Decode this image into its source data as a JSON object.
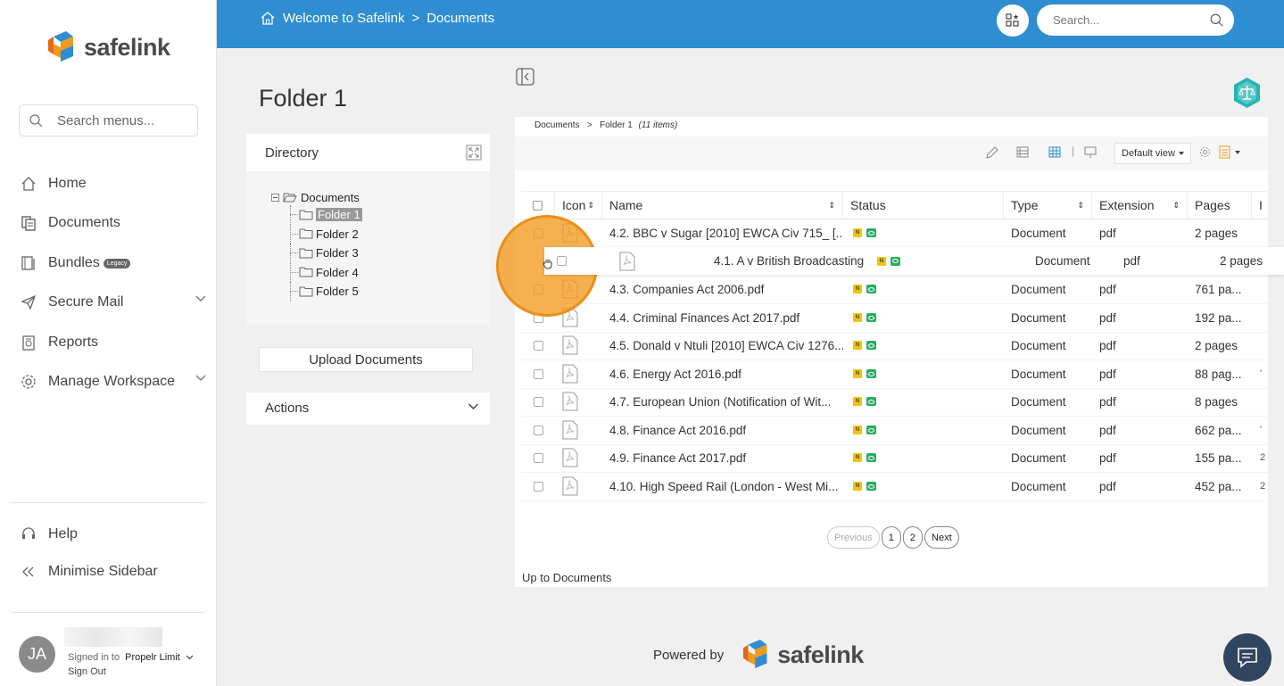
{
  "sidebar": {
    "brand": "safelink",
    "search_placeholder": "Search menus...",
    "items": [
      {
        "label": "Home",
        "icon": "home-icon"
      },
      {
        "label": "Documents",
        "icon": "documents-icon"
      },
      {
        "label": "Bundles",
        "badge": "Legacy",
        "icon": "bundles-icon"
      },
      {
        "label": "Secure Mail",
        "icon": "send-icon"
      },
      {
        "label": "Reports",
        "icon": "reports-icon"
      },
      {
        "label": "Manage Workspace",
        "icon": "gear-icon"
      }
    ],
    "footer_items": [
      {
        "label": "Help",
        "icon": "headset-icon"
      },
      {
        "label": "Minimise Sidebar",
        "icon": "double-chevron-left-icon"
      }
    ],
    "user": {
      "initials": "JA",
      "signed_in_label": "Signed in to",
      "workspace": "Propelr Limit",
      "sign_out": "Sign Out"
    }
  },
  "topbar": {
    "home_label": "Welcome to Safelink",
    "separator": ">",
    "current": "Documents",
    "search_placeholder": "Search..."
  },
  "folder": {
    "title": "Folder 1",
    "directory_label": "Directory",
    "tree_root": "Documents",
    "tree_children": [
      "Folder 1",
      "Folder 2",
      "Folder 3",
      "Folder 4",
      "Folder 5"
    ],
    "upload_label": "Upload Documents",
    "actions_label": "Actions"
  },
  "listing": {
    "crumb_root": "Documents",
    "crumb_sep": ">",
    "crumb_current": "Folder 1",
    "item_count": "(11 items)",
    "view_label": "Default view",
    "toolbar_sep": "|",
    "columns": [
      "Icon",
      "Name",
      "Status",
      "Type",
      "Extension",
      "Pages",
      "I"
    ],
    "dragged_row": {
      "name": "4.1. A v British Broadcasting",
      "type": "Document",
      "ext": "pdf",
      "pages": "2 pages"
    },
    "rows": [
      {
        "name": "4.2. BBC v Sugar [2010] EWCA Civ 715_ [...",
        "type": "Document",
        "ext": "pdf",
        "pages": "2 pages",
        "extra": ""
      },
      {
        "name": "4.3. Companies Act 2006.pdf",
        "type": "Document",
        "ext": "pdf",
        "pages": "761 pa...",
        "extra": ""
      },
      {
        "name": "4.4. Criminal Finances Act 2017.pdf",
        "type": "Document",
        "ext": "pdf",
        "pages": "192 pa...",
        "extra": ""
      },
      {
        "name": "4.5. Donald v Ntuli [2010] EWCA Civ 1276...",
        "type": "Document",
        "ext": "pdf",
        "pages": "2 pages",
        "extra": ""
      },
      {
        "name": "4.6. Energy Act 2016.pdf",
        "type": "Document",
        "ext": "pdf",
        "pages": "88 pag...",
        "extra": "'"
      },
      {
        "name": "4.7. European Union (Notification of Wit...",
        "type": "Document",
        "ext": "pdf",
        "pages": "8 pages",
        "extra": ""
      },
      {
        "name": "4.8. Finance Act 2016.pdf",
        "type": "Document",
        "ext": "pdf",
        "pages": "662 pa...",
        "extra": "'"
      },
      {
        "name": "4.9. Finance Act 2017.pdf",
        "type": "Document",
        "ext": "pdf",
        "pages": "155 pa...",
        "extra": "2"
      },
      {
        "name": "4.10. High Speed Rail (London - West Mi...",
        "type": "Document",
        "ext": "pdf",
        "pages": "452 pa...",
        "extra": "2"
      }
    ],
    "status_badge_n": "N",
    "pager": {
      "previous": "Previous",
      "pages": [
        "1",
        "2"
      ],
      "next": "Next"
    },
    "up_link": "Up to Documents"
  },
  "footer": {
    "powered_by": "Powered by",
    "brand": "safelink"
  },
  "colors": {
    "topbar": "#2e8ed1",
    "cursor_highlight": "#f39a1e",
    "status_n": "#f2c500",
    "status_e": "#27ae60",
    "chat": "#2f4560"
  }
}
